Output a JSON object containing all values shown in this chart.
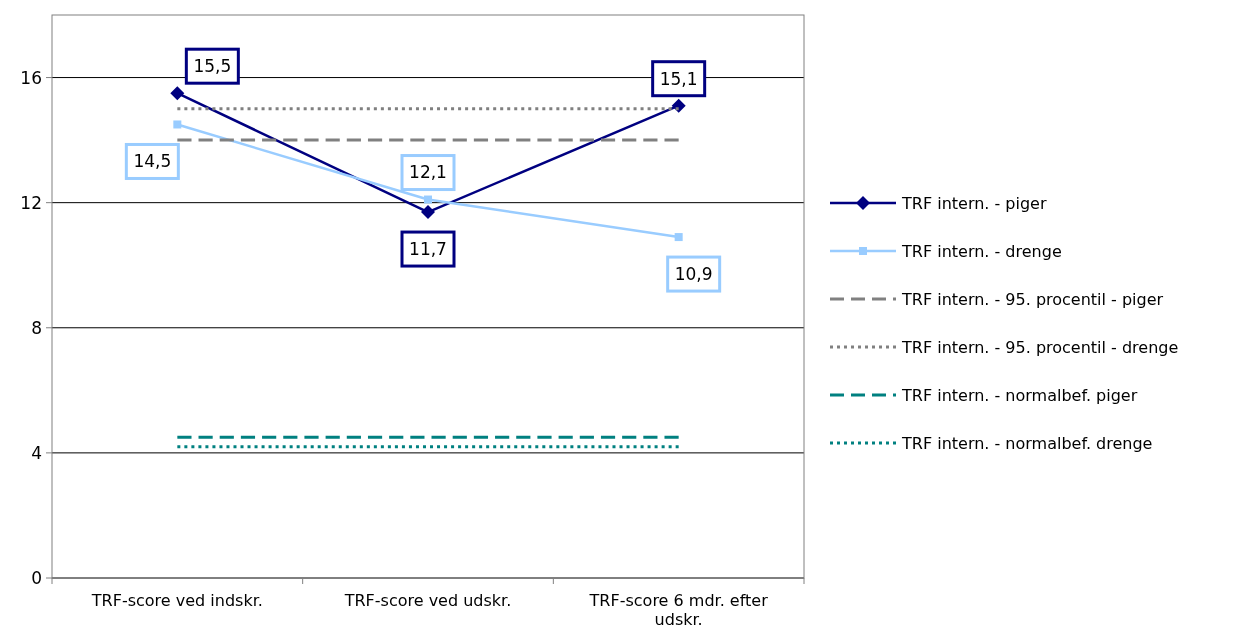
{
  "chart_data": {
    "type": "line",
    "categories": [
      "TRF-score ved indskr.",
      "TRF-score ved udskr.",
      "TRF-score 6 mdr. efter udskr."
    ],
    "ylim": [
      0,
      18
    ],
    "yticks": [
      0,
      4,
      8,
      12,
      16
    ],
    "grid": "y",
    "legend": "right",
    "series": [
      {
        "name": "TRF intern. - piger",
        "color": "#000080",
        "values": [
          15.5,
          11.7,
          15.1
        ],
        "marker": "diamond",
        "line_style": "solid",
        "value_labels": [
          "15,5",
          "11,7",
          "15,1"
        ]
      },
      {
        "name": "TRF intern. - drenge",
        "color": "#99ccff",
        "values": [
          14.5,
          12.1,
          10.9
        ],
        "marker": "square",
        "line_style": "solid",
        "value_labels": [
          "14,5",
          "12,1",
          "10,9"
        ]
      },
      {
        "name": "TRF intern. - 95. procentil - piger",
        "color": "#808080",
        "values": [
          14,
          14,
          14
        ],
        "marker": "none",
        "line_style": "dashed"
      },
      {
        "name": "TRF intern. - 95. procentil - drenge",
        "color": "#808080",
        "values": [
          15,
          15,
          15
        ],
        "marker": "none",
        "line_style": "dotted"
      },
      {
        "name": "TRF intern. - normalbef. piger",
        "color": "#008080",
        "values": [
          4.5,
          4.5,
          4.5
        ],
        "marker": "none",
        "line_style": "dashed"
      },
      {
        "name": "TRF intern. - normalbef. drenge",
        "color": "#008080",
        "values": [
          4.2,
          4.2,
          4.2
        ],
        "marker": "none",
        "line_style": "dotted"
      }
    ]
  }
}
